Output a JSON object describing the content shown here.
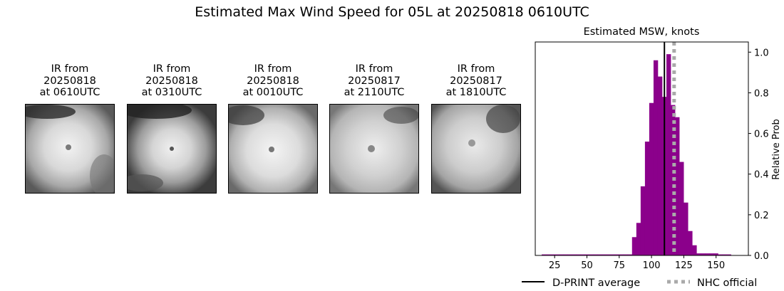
{
  "title": "Estimated Max Wind Speed for 05L at 20250818 0610UTC",
  "ir_panels": [
    {
      "line1": "IR from",
      "date": "20250818",
      "time": "at 0610UTC"
    },
    {
      "line1": "IR from",
      "date": "20250818",
      "time": "at 0310UTC"
    },
    {
      "line1": "IR from",
      "date": "20250818",
      "time": "at 0010UTC"
    },
    {
      "line1": "IR from",
      "date": "20250817",
      "time": "at 2110UTC"
    },
    {
      "line1": "IR from",
      "date": "20250817",
      "time": "at 1810UTC"
    }
  ],
  "chart_data": {
    "type": "bar",
    "title": "Estimated MSW, knots",
    "xlabel": "",
    "ylabel": "Relative Prob",
    "xlim": [
      10,
      175
    ],
    "ylim": [
      0,
      1.05
    ],
    "xticks": [
      25,
      50,
      75,
      100,
      125,
      150
    ],
    "yticks": [
      0.0,
      0.2,
      0.4,
      0.6,
      0.8,
      1.0
    ],
    "ytick_labels": [
      "0.0",
      "0.2",
      "0.4",
      "0.6",
      "0.8",
      "1.0"
    ],
    "y_axis_side": "right",
    "bin_width": 3.33,
    "bin_edges_start": 15,
    "values": [
      0.005,
      0.005,
      0.005,
      0.005,
      0.005,
      0.005,
      0.005,
      0.005,
      0.005,
      0.005,
      0.005,
      0.005,
      0.005,
      0.005,
      0.005,
      0.005,
      0.005,
      0.005,
      0.005,
      0.005,
      0.005,
      0.09,
      0.16,
      0.34,
      0.56,
      0.75,
      0.96,
      0.88,
      0.78,
      0.99,
      0.74,
      0.68,
      0.46,
      0.26,
      0.12,
      0.05,
      0.01,
      0.01,
      0.01,
      0.01,
      0.01,
      0.005,
      0.005,
      0.005
    ],
    "bar_color": "#8b008b",
    "lines": [
      {
        "name": "D-PRINT average",
        "x": 110,
        "color": "#000000",
        "style": "solid"
      },
      {
        "name": "NHC official",
        "x": 117.5,
        "color": "#aaaaaa",
        "style": "dotted"
      }
    ],
    "legend_placement": "bottom"
  }
}
